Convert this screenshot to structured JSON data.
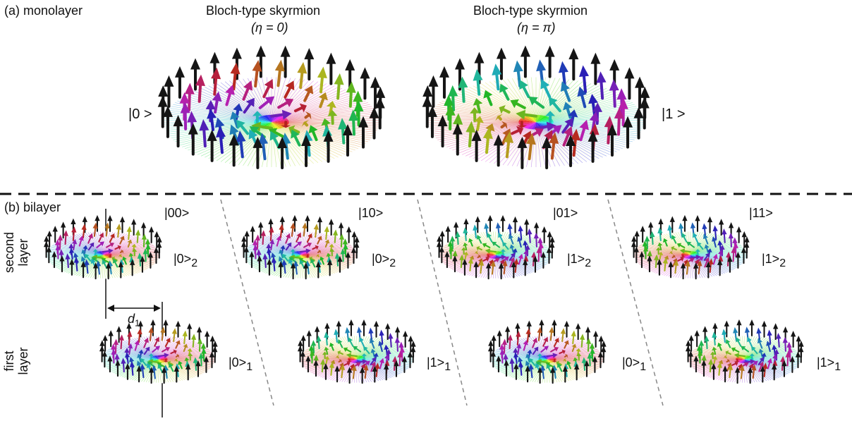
{
  "panel_a": {
    "label": "(a) monolayer",
    "title_left": "Bloch-type skyrmion",
    "eta_left": "(η = 0)",
    "title_right": "Bloch-type skyrmion",
    "eta_right": "(η = π)",
    "ket_left": "|0 >",
    "ket_right": "|1 >"
  },
  "panel_b": {
    "label": "(b) bilayer",
    "row_second": [
      "second",
      "layer"
    ],
    "row_first": [
      "first",
      "layer"
    ],
    "d_label": "d",
    "d_sub": "1",
    "columns": [
      {
        "state": "|00>",
        "top_ket": "|0>",
        "top_sub": "2",
        "bottom_ket": "|0>",
        "bottom_sub": "1"
      },
      {
        "state": "|10>",
        "top_ket": "|0>",
        "top_sub": "2",
        "bottom_ket": "|1>",
        "bottom_sub": "1"
      },
      {
        "state": "|01>",
        "top_ket": "|1>",
        "top_sub": "2",
        "bottom_ket": "|0>",
        "bottom_sub": "1"
      },
      {
        "state": "|11>",
        "top_ket": "|1>",
        "top_sub": "2",
        "bottom_ket": "|1>",
        "bottom_sub": "1"
      }
    ]
  }
}
